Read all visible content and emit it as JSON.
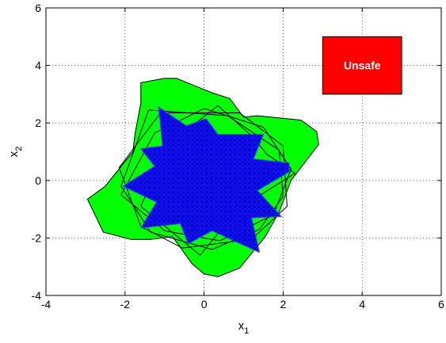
{
  "chart_data": {
    "type": "area",
    "xlabel": "x",
    "xlabel_sub": "1",
    "ylabel": "x",
    "ylabel_sub": "2",
    "xlim": [
      -4,
      6
    ],
    "ylim": [
      -4,
      6
    ],
    "xticks": [
      -4,
      -2,
      0,
      2,
      4,
      6
    ],
    "yticks": [
      -4,
      -2,
      0,
      2,
      4,
      6
    ],
    "grid": true,
    "grid_style": "dotted",
    "unsafe_region": {
      "label": "Unsafe",
      "x": [
        3,
        5
      ],
      "y": [
        3,
        5
      ],
      "color": "#ff0000"
    },
    "reachable_set": {
      "color": "#00ff00",
      "boundary": [
        [
          -2.95,
          -0.65
        ],
        [
          -2.5,
          -0.2
        ],
        [
          -1.8,
          1.0
        ],
        [
          -1.75,
          1.6
        ],
        [
          -1.6,
          2.7
        ],
        [
          -1.6,
          3.4
        ],
        [
          -1.0,
          3.55
        ],
        [
          -0.7,
          3.55
        ],
        [
          0.2,
          3.05
        ],
        [
          0.65,
          2.85
        ],
        [
          1.0,
          2.2
        ],
        [
          1.35,
          2.25
        ],
        [
          2.45,
          2.1
        ],
        [
          2.85,
          1.7
        ],
        [
          2.9,
          1.25
        ],
        [
          2.2,
          0.0
        ],
        [
          2.05,
          -0.55
        ],
        [
          1.9,
          -1.1
        ],
        [
          1.55,
          -1.95
        ],
        [
          0.9,
          -3.05
        ],
        [
          0.35,
          -3.35
        ],
        [
          0.0,
          -3.25
        ],
        [
          -0.3,
          -2.9
        ],
        [
          -0.8,
          -1.95
        ],
        [
          -1.35,
          -2.05
        ],
        [
          -1.85,
          -2.05
        ],
        [
          -2.55,
          -1.8
        ]
      ]
    },
    "trajectory_outlines": [
      [
        [
          -2.15,
          0.45
        ],
        [
          -1.1,
          2.35
        ],
        [
          0.9,
          2.35
        ],
        [
          2.0,
          1.2
        ],
        [
          2.1,
          -0.9
        ],
        [
          1.2,
          -2.05
        ],
        [
          -0.55,
          -2.35
        ],
        [
          -1.6,
          -1.6
        ],
        [
          -2.15,
          0.45
        ]
      ],
      [
        [
          -1.25,
          1.65
        ],
        [
          0.0,
          2.5
        ],
        [
          1.5,
          1.85
        ],
        [
          2.2,
          0.4
        ],
        [
          1.75,
          -1.2
        ],
        [
          0.4,
          -2.1
        ],
        [
          -1.0,
          -1.75
        ],
        [
          -2.1,
          -0.5
        ],
        [
          -1.25,
          1.65
        ]
      ],
      [
        [
          -1.4,
          2.45
        ],
        [
          0.6,
          2.25
        ],
        [
          1.9,
          1.05
        ],
        [
          2.0,
          -0.55
        ],
        [
          1.4,
          -1.7
        ],
        [
          0.2,
          -2.4
        ],
        [
          -1.35,
          -1.8
        ],
        [
          -2.1,
          -0.2
        ],
        [
          -1.4,
          2.45
        ]
      ],
      [
        [
          -0.95,
          1.2
        ],
        [
          0.35,
          2.6
        ],
        [
          1.2,
          1.55
        ],
        [
          1.6,
          0.9
        ],
        [
          2.3,
          0.25
        ],
        [
          0.85,
          -1.0
        ],
        [
          -0.1,
          -2.6
        ],
        [
          -1.6,
          -0.9
        ],
        [
          -0.95,
          1.2
        ]
      ]
    ],
    "star_set": {
      "color": "#0000ff",
      "boundary": [
        [
          -1.15,
          2.55
        ],
        [
          -0.45,
          1.9
        ],
        [
          0.05,
          2.15
        ],
        [
          0.35,
          1.6
        ],
        [
          1.5,
          1.6
        ],
        [
          1.25,
          0.75
        ],
        [
          2.15,
          0.6
        ],
        [
          2.15,
          0.3
        ],
        [
          1.35,
          -0.35
        ],
        [
          1.95,
          -1.25
        ],
        [
          1.2,
          -1.3
        ],
        [
          1.4,
          -2.5
        ],
        [
          0.2,
          -1.75
        ],
        [
          -0.4,
          -2.2
        ],
        [
          -0.6,
          -1.5
        ],
        [
          -1.6,
          -1.65
        ],
        [
          -1.2,
          -0.75
        ],
        [
          -2.05,
          -0.2
        ],
        [
          -1.25,
          0.5
        ],
        [
          -1.6,
          1.1
        ],
        [
          -1.05,
          1.2
        ]
      ]
    }
  }
}
